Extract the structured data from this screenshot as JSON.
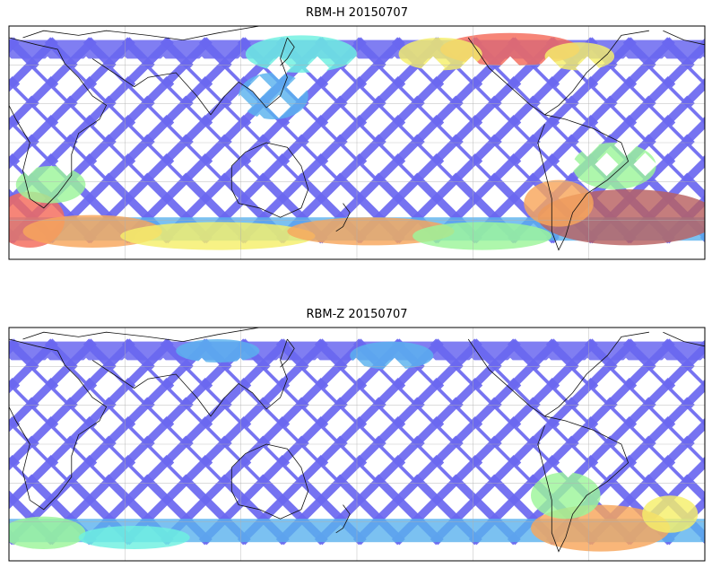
{
  "figure": {
    "panels": [
      {
        "title": "RBM-H 20150707",
        "colors": {
          "base": "#6a67f0",
          "mid": "#5ab2ee",
          "cyan": "#6ef0e0",
          "green": "#9cf59a",
          "yellow": "#f5ef6a",
          "orange": "#f8a65c",
          "red": "#f46a5a",
          "dark": "#b86060"
        }
      },
      {
        "title": "RBM-Z 20150707",
        "colors": {
          "base": "#6a67f0",
          "mid": "#5ab2ee",
          "cyan": "#6ef0e0",
          "green": "#9cf59a",
          "yellow": "#f5ef6a",
          "orange": "#f8a65c",
          "red": "#f46a5a",
          "dark": "#f8a65c"
        }
      }
    ]
  }
}
